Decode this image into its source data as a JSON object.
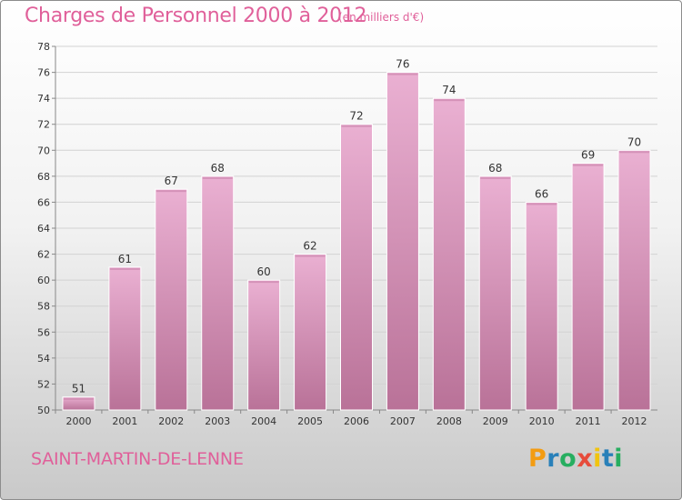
{
  "header": {
    "title": "Charges de Personnel 2000 à 2012",
    "subtitle": "(en milliers d'€)"
  },
  "footer": {
    "commune": "SAINT-MARTIN-DE-LENNE",
    "logo_letters": [
      "P",
      "r",
      "o",
      "x",
      "i",
      "t",
      "i"
    ],
    "logo_colors": [
      "#f39c12",
      "#2980b9",
      "#27ae60",
      "#e74c3c",
      "#f1c40f",
      "#2980b9",
      "#27ae60"
    ]
  },
  "colors": {
    "bar_light": "#eab0d2",
    "bar_dark": "#b97298",
    "text": "#e0609a"
  },
  "chart_data": {
    "type": "bar",
    "categories": [
      "2000",
      "2001",
      "2002",
      "2003",
      "2004",
      "2005",
      "2006",
      "2007",
      "2008",
      "2009",
      "2010",
      "2011",
      "2012"
    ],
    "values": [
      51,
      61,
      67,
      68,
      60,
      62,
      72,
      76,
      74,
      68,
      66,
      69,
      70
    ],
    "data_labels": [
      "51",
      "61",
      "67",
      "68",
      "60",
      "62",
      "72",
      "76",
      "74",
      "68",
      "66",
      "69",
      "70"
    ],
    "title": "Charges de Personnel 2000 à 2012",
    "subtitle": "(en milliers d'€)",
    "ylim": [
      50,
      78
    ],
    "yticks": [
      50,
      52,
      54,
      56,
      58,
      60,
      62,
      64,
      66,
      68,
      70,
      72,
      74,
      76,
      78
    ],
    "grid": true
  }
}
